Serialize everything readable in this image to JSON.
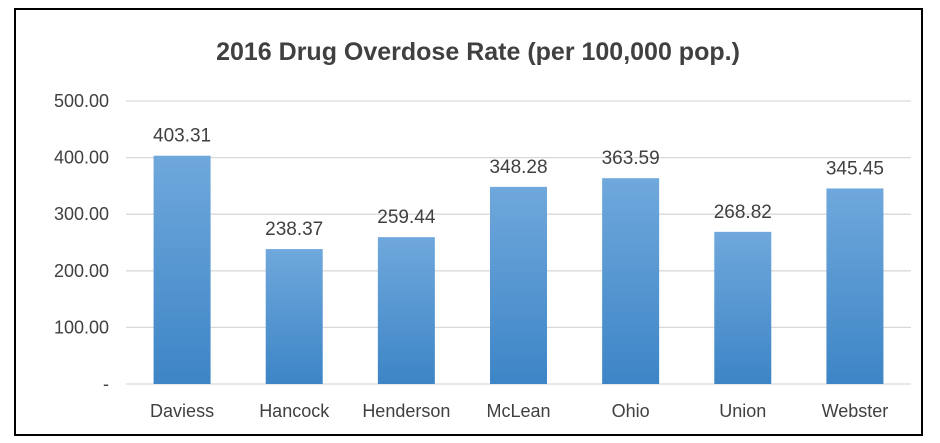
{
  "chart_data": {
    "type": "bar",
    "title": "2016 Drug Overdose Rate (per 100,000 pop.)",
    "xlabel": "",
    "ylabel": "",
    "categories": [
      "Daviess",
      "Hancock",
      "Henderson",
      "McLean",
      "Ohio",
      "Union",
      "Webster"
    ],
    "values": [
      403.31,
      238.37,
      259.44,
      348.28,
      363.59,
      268.82,
      345.45
    ],
    "data_labels": [
      "403.31",
      "238.37",
      "259.44",
      "348.28",
      "363.59",
      "268.82",
      "345.45"
    ],
    "ylim": [
      0,
      500
    ],
    "yticks": [
      0,
      100,
      200,
      300,
      400,
      500
    ],
    "ytick_labels": [
      "-",
      "100.00",
      "200.00",
      "300.00",
      "400.00",
      "500.00"
    ],
    "grid": true,
    "legend": "none",
    "colors": {
      "bar_top": "#6fa8dc",
      "bar_bottom": "#3d85c6",
      "gridline": "#d9d9d9",
      "text": "#404040",
      "frame": "#000000"
    }
  }
}
